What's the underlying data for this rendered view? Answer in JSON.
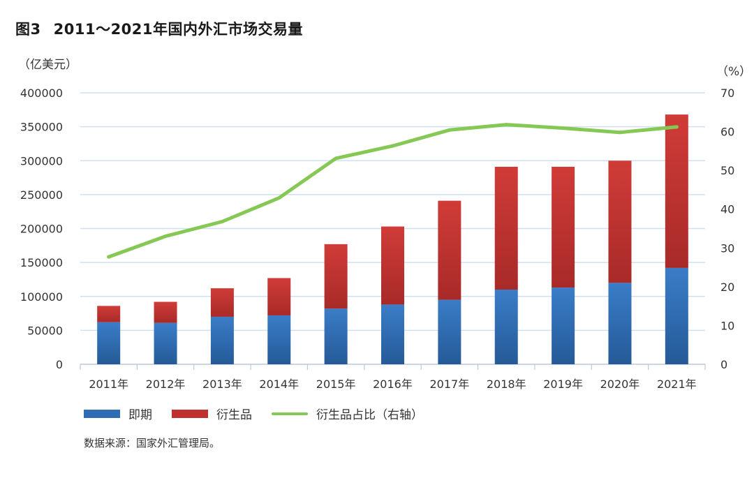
{
  "title": {
    "number": "图3",
    "text": "2011～2021年国内外汇市场交易量"
  },
  "left_unit": "（亿美元）",
  "right_unit": "（%）",
  "legend": {
    "spot": "即期",
    "derivatives": "衍生品",
    "share": "衍生品占比（右轴）"
  },
  "source": "数据来源：国家外汇管理局。",
  "colors": {
    "spot": "#2e6db4",
    "derivatives": "#c0302e",
    "share_line": "#86c854",
    "grid": "#cfe0f2",
    "axis": "#b8c9da"
  },
  "chart_data": {
    "type": "bar",
    "stacked": true,
    "categories": [
      "2011年",
      "2012年",
      "2013年",
      "2014年",
      "2015年",
      "2016年",
      "2017年",
      "2018年",
      "2019年",
      "2020年",
      "2021年"
    ],
    "series": [
      {
        "name": "即期",
        "axis": "left",
        "values": [
          62000,
          61000,
          70000,
          72000,
          82000,
          88000,
          95000,
          110000,
          113000,
          120000,
          142000
        ]
      },
      {
        "name": "衍生品",
        "axis": "left",
        "values": [
          24000,
          31000,
          42000,
          55000,
          95000,
          115000,
          146000,
          181000,
          178000,
          180000,
          226000
        ]
      },
      {
        "name": "衍生品占比（右轴）",
        "axis": "right",
        "type": "line",
        "values": [
          27.7,
          33.0,
          36.8,
          42.9,
          53.1,
          56.3,
          60.4,
          61.8,
          60.9,
          59.8,
          61.2
        ]
      }
    ],
    "ylim_left": [
      0,
      400000
    ],
    "yticks_left": [
      "0",
      "50000",
      "100000",
      "150000",
      "200000",
      "250000",
      "300000",
      "350000",
      "400000"
    ],
    "ylim_right": [
      0,
      70
    ],
    "yticks_right": [
      "0",
      "10",
      "20",
      "30",
      "40",
      "50",
      "60",
      "70"
    ],
    "grid": true,
    "legend_position": "bottom-left"
  }
}
